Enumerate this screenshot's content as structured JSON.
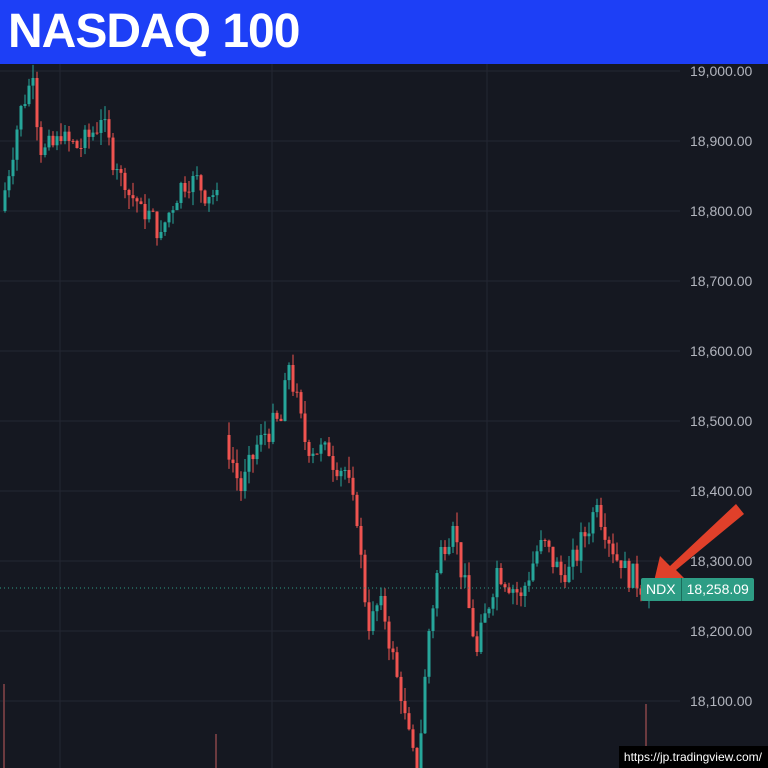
{
  "header": {
    "title": "NASDAQ 100"
  },
  "price_axis": {
    "labels": [
      "19,000.00",
      "18,900.00",
      "18,800.00",
      "18,700.00",
      "18,600.00",
      "18,500.00",
      "18,400.00",
      "18,300.00",
      "18,200.00",
      "18,100.00"
    ]
  },
  "last_price": {
    "symbol": "NDX",
    "value": "18,258.09",
    "color": "#2e9d85"
  },
  "colors": {
    "up": "#26a69a",
    "down": "#ef5350",
    "title_bg": "#1d3ff6",
    "arrow": "#e0402a"
  },
  "watermark": "https://jp.tradingview.com/",
  "chart_data": {
    "type": "candlestick",
    "ylim": [
      18000,
      19000
    ],
    "close_path": [
      [
        0,
        18800
      ],
      [
        5,
        18950
      ],
      [
        8,
        18990
      ],
      [
        10,
        18880
      ],
      [
        15,
        18900
      ],
      [
        20,
        18890
      ],
      [
        25,
        18930
      ],
      [
        29,
        18860
      ],
      [
        31,
        18830
      ],
      [
        35,
        18810
      ],
      [
        40,
        18770
      ],
      [
        45,
        18840
      ],
      [
        48,
        18850
      ],
      [
        52,
        18820
      ],
      [
        54,
        18830
      ],
      [
        56,
        18480
      ],
      [
        60,
        18400
      ],
      [
        65,
        18480
      ],
      [
        70,
        18500
      ],
      [
        72,
        18580
      ],
      [
        76,
        18470
      ],
      [
        82,
        18450
      ],
      [
        86,
        18430
      ],
      [
        89,
        18350
      ],
      [
        92,
        18200
      ],
      [
        95,
        18250
      ],
      [
        100,
        18100
      ],
      [
        104,
        17990
      ],
      [
        107,
        18200
      ],
      [
        110,
        18320
      ],
      [
        113,
        18350
      ],
      [
        119,
        18170
      ],
      [
        124,
        18290
      ],
      [
        130,
        18250
      ],
      [
        135,
        18330
      ],
      [
        141,
        18270
      ],
      [
        149,
        18380
      ],
      [
        155,
        18290
      ],
      [
        162,
        18258
      ]
    ]
  }
}
